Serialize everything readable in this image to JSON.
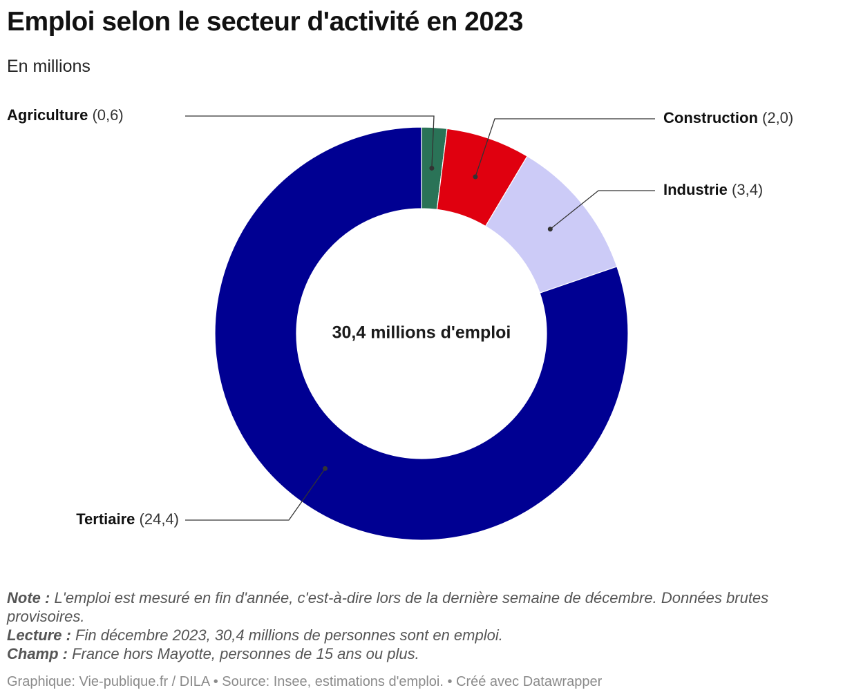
{
  "header": {
    "title": "Emploi selon le secteur d'activité en 2023",
    "subtitle": "En millions"
  },
  "chart_data": {
    "type": "pie",
    "variant": "donut",
    "title": "Emploi selon le secteur d'activité en 2023",
    "subtitle": "En millions",
    "center_label": "30,4 millions d'emploi",
    "slices": [
      {
        "name": "Agriculture",
        "value": 0.6,
        "value_label": "(0,6)",
        "color": "#2a7357"
      },
      {
        "name": "Construction",
        "value": 2.0,
        "value_label": "(2,0)",
        "color": "#e0000f"
      },
      {
        "name": "Industrie",
        "value": 3.4,
        "value_label": "(3,4)",
        "color": "#cccbf7"
      },
      {
        "name": "Tertiaire",
        "value": 24.4,
        "value_label": "(24,4)",
        "color": "#000092"
      }
    ]
  },
  "notes": {
    "note_label": "Note :",
    "note_text": " L'emploi est mesuré en fin d'année, c'est-à-dire lors de la dernière semaine de décembre. Données brutes provisoires.",
    "lecture_label": "Lecture :",
    "lecture_text": " Fin décembre 2023, 30,4 millions de personnes sont en emploi.",
    "champ_label": "Champ :",
    "champ_text": " France hors Mayotte, personnes de 15 ans ou plus."
  },
  "footer": {
    "credit": "Graphique: Vie-publique.fr / DILA • Source: Insee, estimations d'emploi. • Créé avec Datawrapper"
  }
}
